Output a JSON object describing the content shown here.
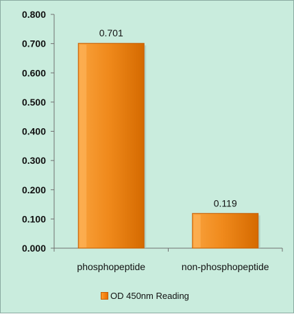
{
  "chart_data": {
    "type": "bar",
    "categories": [
      "phosphopeptide",
      "non-phosphopeptide"
    ],
    "series": [
      {
        "name": "OD 450nm Reading",
        "values": [
          0.701,
          0.119
        ]
      }
    ],
    "data_labels": [
      "0.701",
      "0.119"
    ],
    "y_ticks": [
      "0.000",
      "0.100",
      "0.200",
      "0.300",
      "0.400",
      "0.500",
      "0.600",
      "0.700",
      "0.800"
    ],
    "ylim": [
      0,
      0.8
    ],
    "legend_position": "bottom",
    "grid": false,
    "colors": {
      "bar_main": "#f08a1c",
      "bar_light": "#ffb35a",
      "bar_dark": "#d06200",
      "background": "#c9ecdd",
      "axis": "#666666"
    }
  }
}
